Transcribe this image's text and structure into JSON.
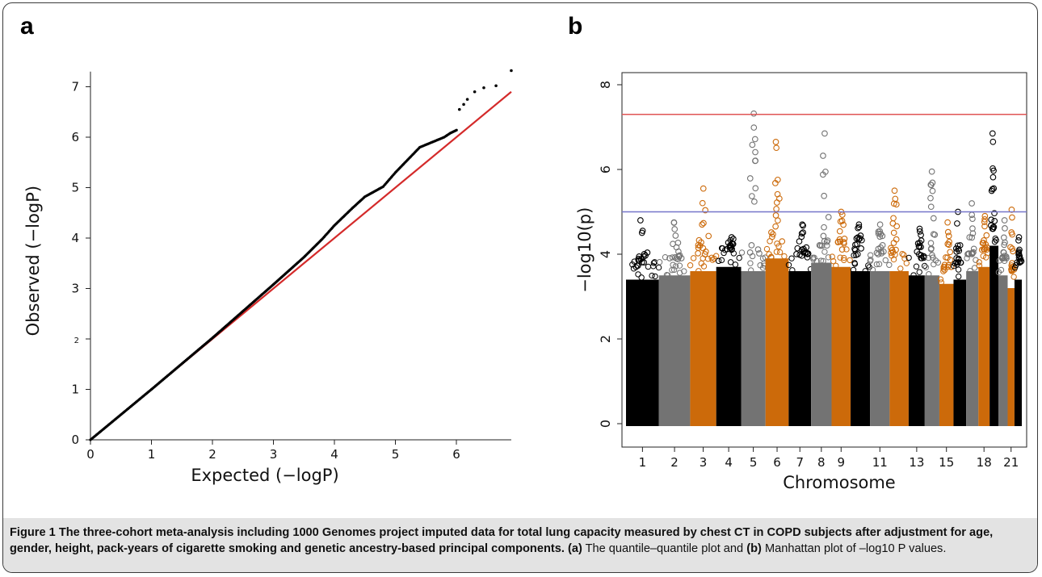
{
  "figure": {
    "panel_a_letter": "a",
    "panel_b_letter": "b",
    "caption": {
      "label": "Figure 1",
      "bold_text": "The three-cohort meta-analysis including 1000 Genomes project imputed data for total lung capacity measured by chest CT in COPD subjects after adjustment for age, gender, height, pack-years of cigarette smoking and genetic ancestry-based principal components.",
      "part_a_tag": "(a)",
      "part_a_text": "The quantile–quantile plot and",
      "part_b_tag": "(b)",
      "part_b_text": "Manhattan plot of –log10 P values."
    }
  },
  "chart_data": [
    {
      "type": "scatter",
      "panel": "a",
      "xlabel": "Expected (−logP)",
      "ylabel": "Observed (−logP)",
      "xlim": [
        0,
        6.9
      ],
      "ylim": [
        0,
        7.3
      ],
      "x_ticks": [
        0,
        1,
        2,
        3,
        4,
        5,
        6
      ],
      "y_ticks": [
        0,
        1,
        2,
        3,
        4,
        5,
        6,
        7
      ],
      "reference_line": {
        "from": [
          0,
          0
        ],
        "to": [
          6.9,
          6.9
        ],
        "color": "#d42a2a"
      },
      "points": [
        [
          0,
          0
        ],
        [
          1,
          1
        ],
        [
          2,
          2.02
        ],
        [
          2.5,
          2.55
        ],
        [
          3,
          3.08
        ],
        [
          3.5,
          3.62
        ],
        [
          3.8,
          3.98
        ],
        [
          4,
          4.25
        ],
        [
          4.3,
          4.6
        ],
        [
          4.5,
          4.82
        ],
        [
          4.8,
          5.02
        ],
        [
          5.0,
          5.3
        ],
        [
          5.2,
          5.55
        ],
        [
          5.4,
          5.8
        ],
        [
          5.6,
          5.9
        ],
        [
          5.8,
          6.0
        ],
        [
          5.9,
          6.08
        ],
        [
          6.02,
          6.15
        ]
      ],
      "tail_points": [
        [
          6.05,
          6.55
        ],
        [
          6.12,
          6.65
        ],
        [
          6.18,
          6.75
        ],
        [
          6.3,
          6.9
        ],
        [
          6.45,
          6.98
        ],
        [
          6.65,
          7.02
        ],
        [
          6.9,
          7.32
        ]
      ],
      "point_color": "#000000"
    },
    {
      "type": "scatter",
      "panel": "b",
      "subtype": "manhattan",
      "xlabel": "Chromosome",
      "ylabel": "−log10(p)",
      "ylim": [
        0,
        8.3
      ],
      "y_ticks": [
        0,
        2,
        4,
        6,
        8
      ],
      "x_tick_labels": [
        "1",
        "2",
        "3",
        "4",
        "5",
        "6",
        "7",
        "8",
        "9",
        "11",
        "13",
        "15",
        "18",
        "21"
      ],
      "x_tick_chromosomes": [
        1,
        2,
        3,
        4,
        5,
        6,
        7,
        8,
        9,
        11,
        13,
        15,
        18,
        21
      ],
      "colors": {
        "black": "#000000",
        "gray": "#737373",
        "orange": "#cc6a0a"
      },
      "thresholds": [
        {
          "value": 7.3,
          "color": "#e05555"
        },
        {
          "value": 5.0,
          "color": "#7676c9"
        }
      ],
      "chromosomes": [
        {
          "chr": 1,
          "color": "black",
          "base": 3.4,
          "max": 4.8
        },
        {
          "chr": 2,
          "color": "gray",
          "base": 3.5,
          "max": 4.75
        },
        {
          "chr": 3,
          "color": "orange",
          "base": 3.6,
          "max": 5.55
        },
        {
          "chr": 4,
          "color": "black",
          "base": 3.7,
          "max": 4.4
        },
        {
          "chr": 5,
          "color": "gray",
          "base": 3.6,
          "max": 7.32
        },
        {
          "chr": 6,
          "color": "orange",
          "base": 3.9,
          "max": 6.65
        },
        {
          "chr": 7,
          "color": "black",
          "base": 3.6,
          "max": 4.7
        },
        {
          "chr": 8,
          "color": "gray",
          "base": 3.8,
          "max": 6.85
        },
        {
          "chr": 9,
          "color": "orange",
          "base": 3.7,
          "max": 5.0
        },
        {
          "chr": 10,
          "color": "black",
          "base": 3.6,
          "max": 4.7
        },
        {
          "chr": 11,
          "color": "gray",
          "base": 3.6,
          "max": 4.7
        },
        {
          "chr": 12,
          "color": "orange",
          "base": 3.6,
          "max": 5.5
        },
        {
          "chr": 13,
          "color": "black",
          "base": 3.5,
          "max": 4.6
        },
        {
          "chr": 14,
          "color": "gray",
          "base": 3.5,
          "max": 5.95
        },
        {
          "chr": 15,
          "color": "orange",
          "base": 3.3,
          "max": 4.75
        },
        {
          "chr": 16,
          "color": "black",
          "base": 3.4,
          "max": 5.0
        },
        {
          "chr": 17,
          "color": "gray",
          "base": 3.6,
          "max": 5.2
        },
        {
          "chr": 18,
          "color": "orange",
          "base": 3.7,
          "max": 4.9
        },
        {
          "chr": 19,
          "color": "black",
          "base": 4.2,
          "max": 6.85
        },
        {
          "chr": 20,
          "color": "gray",
          "base": 3.5,
          "max": 4.8
        },
        {
          "chr": 21,
          "color": "orange",
          "base": 3.2,
          "max": 5.05
        },
        {
          "chr": 22,
          "color": "black",
          "base": 3.4,
          "max": 4.4
        }
      ]
    }
  ]
}
